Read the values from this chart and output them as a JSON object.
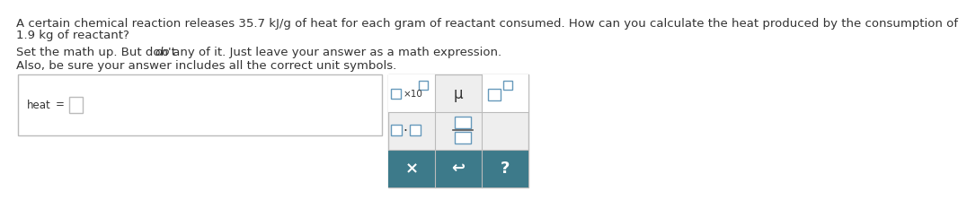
{
  "line1": "A certain chemical reaction releases 35.7 kJ/g of heat for each gram of reactant consumed. How can you calculate the heat produced by the consumption of",
  "line1b": "1.9 kg of reactant?",
  "line2a": "Set the math up. But don't ",
  "line2b": "do",
  "line2c": " any of it. Just leave your answer as a math expression.",
  "line3": "Also, be sure your answer includes all the correct unit symbols.",
  "bg_color": "#ffffff",
  "text_color": "#333333",
  "border_color": "#bbbbbb",
  "button_color": "#3d7a8a",
  "button_text_color": "#ffffff",
  "small_box_edge": "#6699bb",
  "small_box_face": "#ffffff",
  "panel_bg": "#eeeeee",
  "cell_bg_white": "#ffffff",
  "cell_bg_gray": "#eeeeee",
  "font_size": 9.5
}
